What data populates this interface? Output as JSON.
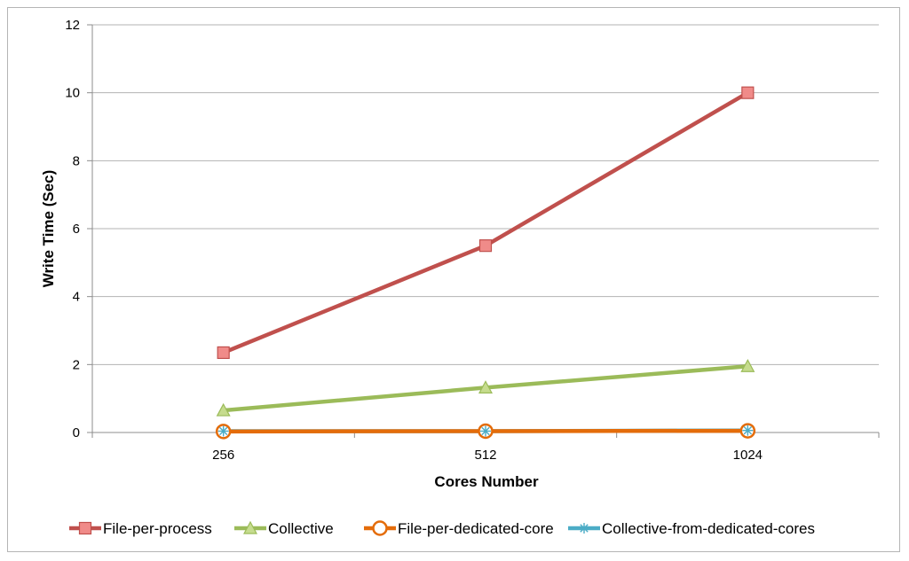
{
  "chart_data": {
    "type": "line",
    "title": "",
    "xlabel": "Cores Number",
    "ylabel": "Write Time (Sec)",
    "categories": [
      "256",
      "512",
      "1024"
    ],
    "ylim": [
      0,
      12
    ],
    "yticks": [
      0,
      2,
      4,
      6,
      8,
      10,
      12
    ],
    "grid": true,
    "legend_position": "bottom",
    "series": [
      {
        "name": "File-per-process",
        "values": [
          2.35,
          5.5,
          10.0
        ],
        "color": "#c0504d",
        "fill": "#f08b89",
        "marker": "square"
      },
      {
        "name": "Collective",
        "values": [
          0.65,
          1.32,
          1.95
        ],
        "color": "#9bbb59",
        "fill": "#c6dc8e",
        "marker": "triangle"
      },
      {
        "name": "File-per-dedicated-core",
        "values": [
          0.03,
          0.04,
          0.05
        ],
        "color": "#e46c0a",
        "fill": "#ffffff",
        "marker": "circle"
      },
      {
        "name": "Collective-from-dedicated-cores",
        "values": [
          0.04,
          0.04,
          0.06
        ],
        "color": "#4bacc6",
        "fill": "#4bacc6",
        "marker": "star"
      }
    ]
  }
}
